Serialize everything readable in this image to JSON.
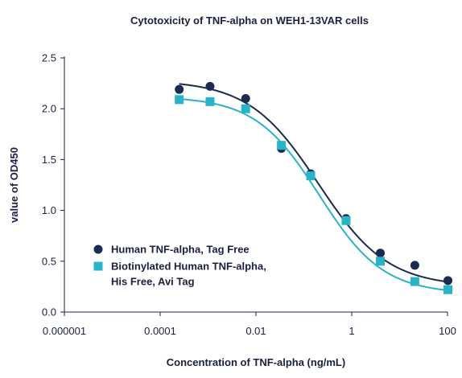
{
  "chart_data": {
    "type": "scatter",
    "title": "Cytotoxicity of TNF-alpha on WEH1-13VAR cells",
    "xlabel": "Concentration of TNF-alpha (ng/mL)",
    "ylabel": "value of OD450",
    "xscale": "log",
    "xlim": [
      1e-06,
      100
    ],
    "ylim": [
      0,
      2.5
    ],
    "x_ticks": [
      1e-06,
      0.0001,
      0.01,
      1,
      100
    ],
    "x_tick_labels": [
      "0.000001",
      "0.0001",
      "0.01",
      "1",
      "100"
    ],
    "y_ticks": [
      0,
      0.5,
      1.0,
      1.5,
      2.0,
      2.5
    ],
    "y_tick_labels": [
      "0.0",
      "0.5",
      "1.0",
      "1.5",
      "2.0",
      "2.5"
    ],
    "grid": false,
    "legend_position": "lower-left",
    "series": [
      {
        "name": "Human TNF-alpha, Tag Free",
        "marker": "circle",
        "color": "#1b2a4f",
        "x": [
          0.00025,
          0.0011,
          0.0061,
          0.034,
          0.139,
          0.76,
          3.95,
          20.8,
          102
        ],
        "y": [
          2.19,
          2.22,
          2.1,
          1.61,
          1.36,
          0.92,
          0.58,
          0.46,
          0.31
        ],
        "fit": {
          "top": 2.28,
          "bottom": 0.25,
          "ec50": 0.2,
          "hill": 0.6
        }
      },
      {
        "name": "Biotinylated Human TNF-alpha, His Free, Avi Tag",
        "marker": "square",
        "color": "#29b3c9",
        "x": [
          0.00025,
          0.0011,
          0.0061,
          0.034,
          0.139,
          0.76,
          3.95,
          20.8,
          102
        ],
        "y": [
          2.09,
          2.07,
          2.0,
          1.64,
          1.34,
          0.9,
          0.5,
          0.3,
          0.22
        ],
        "fit": {
          "top": 2.12,
          "bottom": 0.18,
          "ec50": 0.21,
          "hill": 0.65
        }
      }
    ]
  }
}
